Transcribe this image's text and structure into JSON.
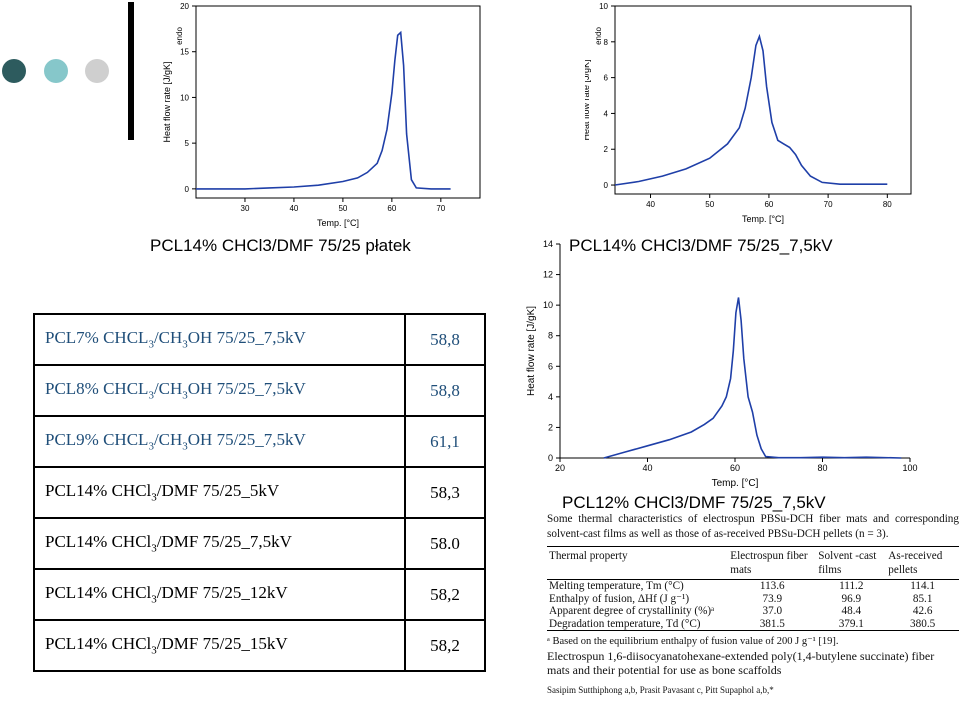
{
  "decor": {
    "dot_colors": [
      "#2d5b5e",
      "#86c7ca",
      "#cfcfcf"
    ]
  },
  "chart_data": [
    {
      "type": "line",
      "xlabel": "Temp. [°C]",
      "ylabel": "Heat flow rate [J/gK]",
      "annotation": "endo",
      "xlim": [
        20,
        78
      ],
      "ylim": [
        -1,
        20
      ],
      "xticks": [
        "30",
        "40",
        "50",
        "60",
        "70"
      ],
      "yticks": [
        "0",
        "5",
        "10",
        "15",
        "20"
      ],
      "series": [
        {
          "color": "#1f3fa8",
          "x": [
            20,
            25,
            30,
            35,
            40,
            45,
            50,
            53,
            55,
            57,
            58,
            59,
            60,
            60.6,
            61.2,
            61.8,
            62.4,
            63,
            64,
            65,
            68,
            72
          ],
          "y": [
            0,
            0,
            0,
            0.1,
            0.2,
            0.4,
            0.8,
            1.2,
            1.8,
            2.8,
            4.2,
            6.5,
            10.5,
            14.0,
            16.8,
            17.1,
            13.5,
            6.0,
            1.0,
            0.1,
            0,
            0
          ]
        }
      ]
    },
    {
      "type": "line",
      "xlabel": "Temp. [°C]",
      "ylabel": "Heat flow rate [J/gK]",
      "annotation": "endo",
      "xlim": [
        34,
        84
      ],
      "ylim": [
        -0.5,
        10
      ],
      "xticks": [
        "40",
        "50",
        "60",
        "70",
        "80"
      ],
      "yticks": [
        "0",
        "2",
        "4",
        "6",
        "8",
        "10"
      ],
      "series": [
        {
          "color": "#1f3fa8",
          "x": [
            34,
            38,
            42,
            46,
            50,
            53,
            55,
            56,
            57,
            57.8,
            58.4,
            59,
            59.6,
            60.5,
            61.5,
            62.5,
            63.5,
            64.5,
            65.5,
            67,
            69,
            72,
            76,
            80
          ],
          "y": [
            0,
            0.2,
            0.5,
            0.9,
            1.5,
            2.3,
            3.2,
            4.3,
            6.0,
            7.8,
            8.3,
            7.5,
            5.5,
            3.5,
            2.5,
            2.3,
            2.1,
            1.7,
            1.1,
            0.5,
            0.15,
            0.05,
            0.05,
            0.05
          ]
        }
      ]
    },
    {
      "type": "line",
      "xlabel": "Temp. [°C]",
      "ylabel": "Heat flow rate [J/gK]",
      "xlim": [
        20,
        100
      ],
      "ylim": [
        0,
        14
      ],
      "xticks": [
        "20",
        "40",
        "60",
        "80",
        "100"
      ],
      "yticks": [
        "0",
        "2",
        "4",
        "6",
        "8",
        "10",
        "12",
        "14"
      ],
      "series": [
        {
          "color": "#1f3fa8",
          "x": [
            30,
            35,
            40,
            45,
            50,
            53,
            55,
            57,
            58,
            59,
            59.6,
            60.2,
            60.8,
            61.4,
            62,
            63,
            64,
            65,
            66,
            67,
            70,
            75,
            80,
            85,
            90,
            98
          ],
          "y": [
            0,
            0.4,
            0.8,
            1.2,
            1.7,
            2.2,
            2.6,
            3.4,
            4.0,
            5.2,
            7.0,
            9.5,
            10.5,
            9.0,
            6.5,
            4.0,
            3.0,
            1.5,
            0.6,
            0.1,
            0.02,
            0.02,
            0.05,
            0.02,
            0.05,
            0
          ]
        }
      ]
    }
  ],
  "captions": {
    "c1": "PCL14% CHCl3/DMF 75/25 płatek",
    "c2": "PCL14% CHCl3/DMF 75/25_7,5kV",
    "c3": "PCL12% CHCl3/DMF 75/25_7,5kV"
  },
  "results_table": [
    {
      "pre": "PCL7% CHCL",
      "s1": "3",
      "mid": "/CH",
      "s2": "3",
      "post": "OH 75/25_7,5kV",
      "value": "58,8"
    },
    {
      "pre": "PCL8% CHCL",
      "s1": "3",
      "mid": "/CH",
      "s2": "3",
      "post": "OH 75/25_7,5kV",
      "value": "58,8"
    },
    {
      "pre": "PCL9% CHCL",
      "s1": "3",
      "mid": "/CH",
      "s2": "3",
      "post": "OH 75/25_7,5kV",
      "value": "61,1"
    },
    {
      "pre": "PCL14% CHCl",
      "s1": "3",
      "mid": "/DMF 75/25_5kV",
      "s2": "",
      "post": "",
      "value": "58,3"
    },
    {
      "pre": "PCL14% CHCl",
      "s1": "3",
      "mid": "/DMF 75/25_7,5kV",
      "s2": "",
      "post": "",
      "value": "58.0"
    },
    {
      "pre": "PCL14% CHCl",
      "s1": "3",
      "mid": "/DMF 75/25_12kV",
      "s2": "",
      "post": "",
      "value": "58,2"
    },
    {
      "pre": "PCL14% CHCl",
      "s1": "3",
      "mid": "/DMF 75/25_15kV",
      "s2": "",
      "post": "",
      "value": "58,2"
    }
  ],
  "paper": {
    "caption": "Some thermal characteristics of electrospun PBSu-DCH fiber mats and corresponding solvent-cast films as well as those of as-received PBSu-DCH pellets (n = 3).",
    "headers": [
      "Thermal property",
      "Electrospun fiber mats",
      "Solvent -cast films",
      "As-received pellets"
    ],
    "rows": [
      [
        "Melting temperature, Tm (°C)",
        "113.6",
        "111.2",
        "114.1"
      ],
      [
        "Enthalpy of fusion, ΔHf (J g⁻¹)",
        "73.9",
        "96.9",
        "85.1"
      ],
      [
        "Apparent degree of crystallinity (%)ᵃ",
        "37.0",
        "48.4",
        "42.6"
      ],
      [
        "Degradation temperature, Td (°C)",
        "381.5",
        "379.1",
        "380.5"
      ]
    ],
    "footnote": "ᵃ  Based on the equilibrium enthalpy of fusion value of 200 J g⁻¹ [19].",
    "reference": "Electrospun 1,6-diisocyanatohexane-extended poly(1,4-butylene succinate) fiber mats and their potential for use as bone scaffolds",
    "authors": "Sasipim Sutthiphong a,b, Prasit Pavasant c, Pitt Supaphol a,b,*"
  }
}
